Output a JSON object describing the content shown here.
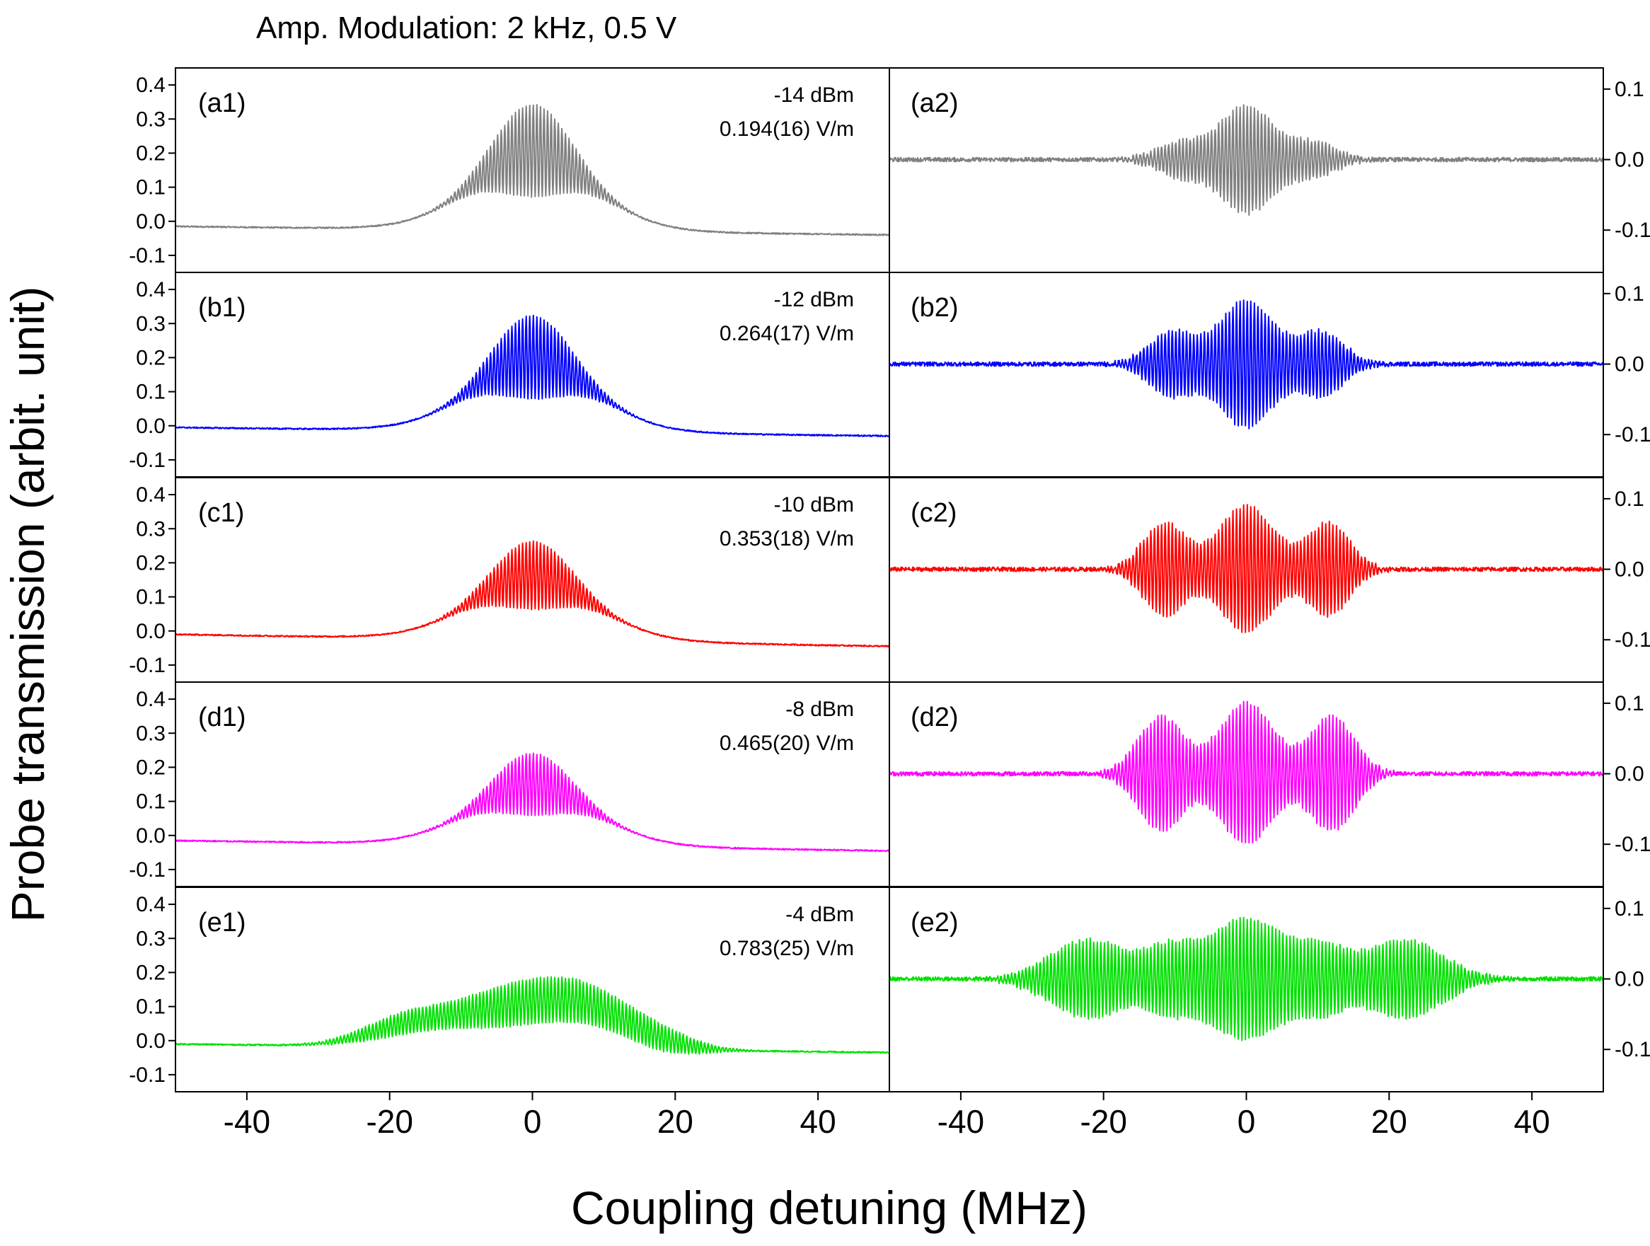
{
  "figure": {
    "title": "Amp. Modulation: 2 kHz, 0.5 V",
    "xlabel": "Coupling detuning (MHz)",
    "ylabel": "Probe transmission (arbit. unit)"
  },
  "chart_data": {
    "type": "line",
    "title": "Amp. Modulation: 2 kHz, 0.5 V",
    "xlabel": "Coupling detuning (MHz)",
    "ylabel": "Probe transmission (arbit. unit)",
    "xlim": [
      -50,
      50
    ],
    "xticks": [
      -40,
      -20,
      0,
      20,
      40
    ],
    "xtick_labels": [
      "-40",
      "-20",
      "0",
      "20",
      "40"
    ],
    "left_ylim": [
      -0.15,
      0.45
    ],
    "left_yticks": [
      -0.1,
      0.0,
      0.1,
      0.2,
      0.3,
      0.4
    ],
    "left_ytick_labels": [
      "-0.1",
      "0.0",
      "0.1",
      "0.2",
      "0.3",
      "0.4"
    ],
    "right_ylim": [
      -0.16,
      0.13
    ],
    "right_yticks": [
      -0.1,
      0.0,
      0.1
    ],
    "right_ytick_labels": [
      "-0.1",
      "0.0",
      "0.1"
    ],
    "grid": false,
    "rows": [
      {
        "color": "#808080",
        "left": {
          "label": "(a1)",
          "power": "-14 dBm",
          "field": "0.194(16) V/m",
          "sidebands": [],
          "amplitude_peak": 0.3,
          "baseline_start": -0.015,
          "baseline_end": -0.04
        },
        "right": {
          "label": "(a2)",
          "sidebands": [
            [
              0,
              0.075,
              3.5
            ],
            [
              -9,
              0.025,
              3.5
            ],
            [
              9,
              0.025,
              3.5
            ]
          ]
        }
      },
      {
        "color": "#0000ff",
        "left": {
          "label": "(b1)",
          "power": "-12 dBm",
          "field": "0.264(17) V/m",
          "amplitude_peak": 0.27,
          "baseline_start": -0.005,
          "baseline_end": -0.03
        },
        "right": {
          "label": "(b2)",
          "sidebands": [
            [
              0,
              0.09,
              3.8
            ],
            [
              -10.5,
              0.045,
              3.2
            ],
            [
              10.5,
              0.045,
              3.2
            ]
          ]
        }
      },
      {
        "color": "#ff0000",
        "left": {
          "label": "(c1)",
          "power": "-10 dBm",
          "field": "0.353(18) V/m",
          "amplitude_peak": 0.22,
          "baseline_start": -0.01,
          "baseline_end": -0.045
        },
        "right": {
          "label": "(c2)",
          "sidebands": [
            [
              0,
              0.09,
              3.8
            ],
            [
              -11.5,
              0.065,
              3.0
            ],
            [
              11.5,
              0.065,
              3.0
            ]
          ]
        }
      },
      {
        "color": "#ff00ff",
        "left": {
          "label": "(d1)",
          "power": "-8 dBm",
          "field": "0.465(20) V/m",
          "amplitude_peak": 0.2,
          "baseline_start": -0.015,
          "baseline_end": -0.045
        },
        "right": {
          "label": "(d2)",
          "sidebands": [
            [
              0,
              0.1,
              3.8
            ],
            [
              -12,
              0.08,
              3.2
            ],
            [
              12,
              0.08,
              3.2
            ]
          ]
        }
      },
      {
        "color": "#00e000",
        "left": {
          "label": "(e1)",
          "power": "-4 dBm",
          "field": "0.783(25) V/m",
          "amplitude_peak": 0.15,
          "baseline_start": -0.01,
          "baseline_end": -0.035
        },
        "right": {
          "label": "(e2)",
          "sidebands": [
            [
              0,
              0.085,
              6.0
            ],
            [
              -22,
              0.055,
              5.5
            ],
            [
              22,
              0.055,
              5.5
            ],
            [
              -11,
              0.03,
              3.0
            ],
            [
              11,
              0.03,
              3.0
            ]
          ]
        }
      }
    ]
  }
}
